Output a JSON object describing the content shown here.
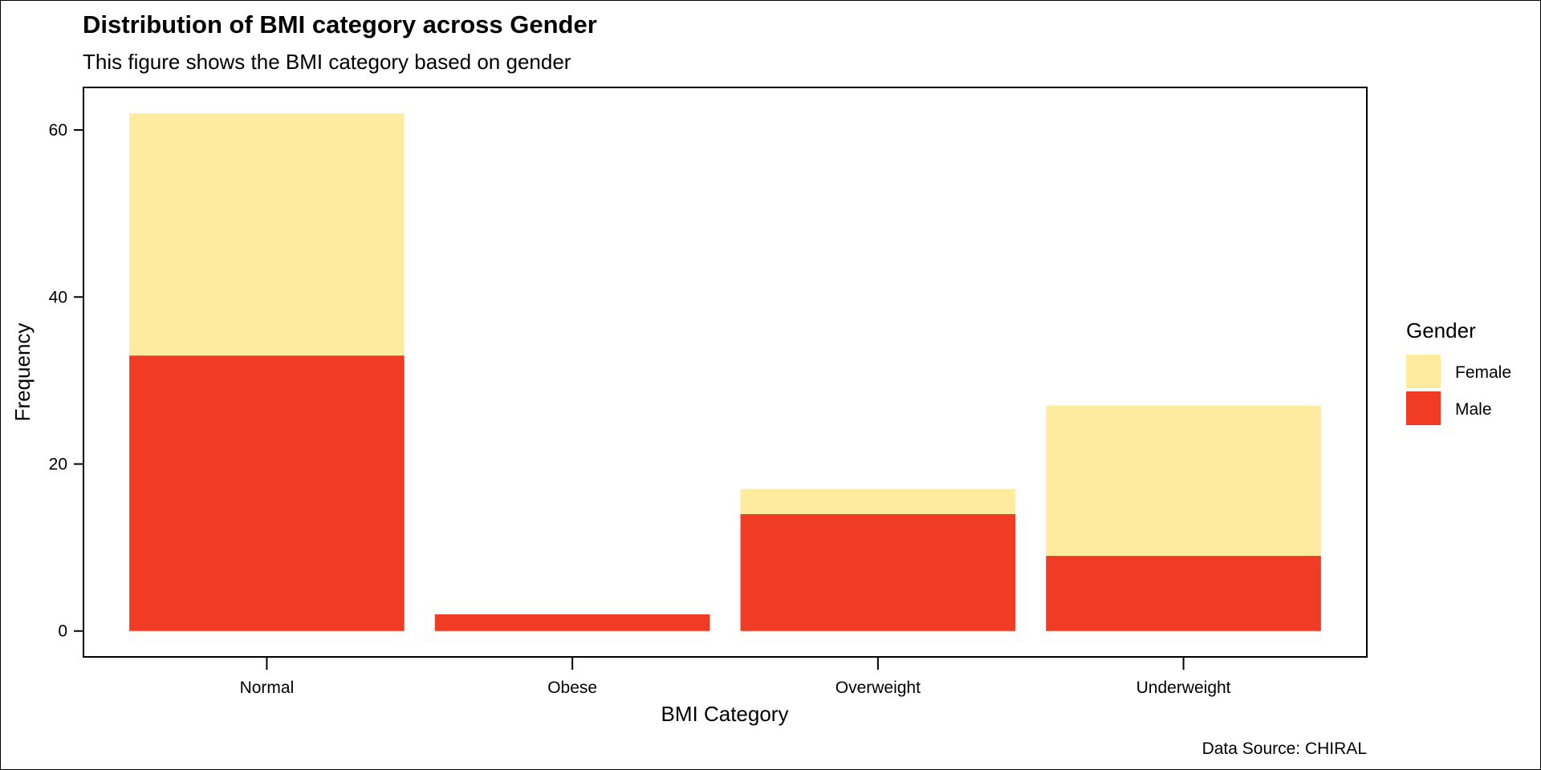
{
  "chart_data": {
    "type": "bar",
    "stacked": true,
    "title": "Distribution of BMI category across Gender",
    "subtitle": "This figure shows the BMI category based on gender",
    "xlabel": "BMI Category",
    "ylabel": "Frequency",
    "caption": "Data Source: CHIRAL",
    "categories": [
      "Normal",
      "Obese",
      "Overweight",
      "Underweight"
    ],
    "series": [
      {
        "name": "Male",
        "color": "#f03c24",
        "values": [
          33,
          2,
          14,
          9
        ]
      },
      {
        "name": "Female",
        "color": "#feeb9f",
        "values": [
          29,
          0,
          3,
          18
        ]
      }
    ],
    "ylim": [
      -3.1,
      65.1
    ],
    "yticks": [
      0,
      20,
      40,
      60
    ],
    "yticks_labels": [
      "0",
      "20",
      "40",
      "60"
    ],
    "grid": false,
    "legend": {
      "title": "Gender",
      "position": "right",
      "entries": [
        {
          "label": "Female",
          "color": "#feeb9f"
        },
        {
          "label": "Male",
          "color": "#f03c24"
        }
      ]
    }
  }
}
